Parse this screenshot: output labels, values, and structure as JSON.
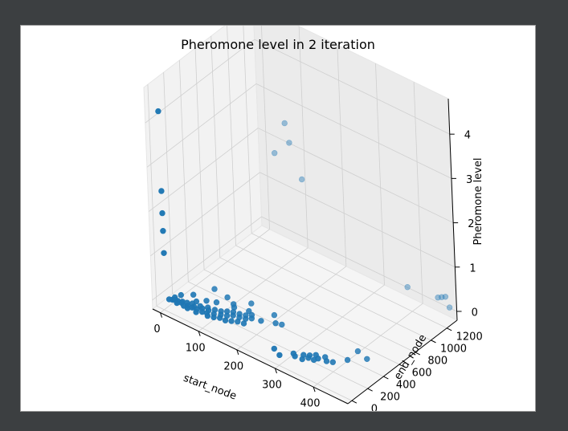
{
  "chart_data": {
    "type": "scatter",
    "title": "Pheromone level in 2 iteration",
    "xlabel": "start_node",
    "ylabel": "end_node",
    "zlabel": "Pheromone level",
    "xlim": [
      -20,
      490
    ],
    "ylim": [
      -50,
      1330
    ],
    "zlim": [
      -0.2,
      4.8
    ],
    "xticks": [
      "0",
      "100",
      "200",
      "300",
      "400"
    ],
    "yticks": [
      "0",
      "200",
      "400",
      "600",
      "800",
      "1000",
      "1200"
    ],
    "zticks": [
      "0",
      "1",
      "2",
      "3",
      "4"
    ],
    "grid": true,
    "color": "#1f77b4",
    "points": [
      [
        5,
        0,
        4.3
      ],
      [
        5,
        0,
        2.5
      ],
      [
        5,
        0,
        2.0
      ],
      [
        5,
        0,
        1.6
      ],
      [
        5,
        0,
        1.1
      ],
      [
        10,
        20,
        0.05
      ],
      [
        14,
        40,
        0.03
      ],
      [
        18,
        60,
        0.02
      ],
      [
        22,
        30,
        0.08
      ],
      [
        26,
        50,
        0.04
      ],
      [
        12,
        80,
        0.02
      ],
      [
        30,
        20,
        0.05
      ],
      [
        34,
        70,
        0.03
      ],
      [
        38,
        40,
        0.06
      ],
      [
        42,
        90,
        0.01
      ],
      [
        46,
        30,
        0.04
      ],
      [
        50,
        60,
        0.02
      ],
      [
        54,
        100,
        0.03
      ],
      [
        58,
        20,
        0.05
      ],
      [
        62,
        80,
        0.02
      ],
      [
        66,
        40,
        0.07
      ],
      [
        70,
        120,
        0.01
      ],
      [
        74,
        60,
        0.04
      ],
      [
        78,
        30,
        0.03
      ],
      [
        82,
        90,
        0.05
      ],
      [
        86,
        140,
        0.02
      ],
      [
        90,
        50,
        0.06
      ],
      [
        94,
        110,
        0.03
      ],
      [
        98,
        70,
        0.04
      ],
      [
        102,
        150,
        0.02
      ],
      [
        106,
        40,
        0.05
      ],
      [
        110,
        100,
        0.03
      ],
      [
        114,
        170,
        0.01
      ],
      [
        118,
        60,
        0.04
      ],
      [
        122,
        130,
        0.02
      ],
      [
        126,
        190,
        0.03
      ],
      [
        130,
        80,
        0.05
      ],
      [
        134,
        150,
        0.02
      ],
      [
        138,
        210,
        0.04
      ],
      [
        142,
        90,
        0.03
      ],
      [
        146,
        170,
        0.05
      ],
      [
        150,
        230,
        0.02
      ],
      [
        154,
        110,
        0.04
      ],
      [
        158,
        190,
        0.03
      ],
      [
        162,
        250,
        0.01
      ],
      [
        166,
        130,
        0.05
      ],
      [
        170,
        210,
        0.02
      ],
      [
        174,
        270,
        0.04
      ],
      [
        178,
        150,
        0.03
      ],
      [
        182,
        230,
        0.05
      ],
      [
        60,
        350,
        0.04
      ],
      [
        120,
        300,
        0.02
      ],
      [
        150,
        380,
        0.05
      ],
      [
        200,
        260,
        0.03
      ],
      [
        210,
        380,
        0.04
      ],
      [
        240,
        330,
        0.02
      ],
      [
        40,
        180,
        0.06
      ],
      [
        90,
        230,
        0.03
      ],
      [
        20,
        120,
        0.05
      ],
      [
        130,
        260,
        0.04
      ],
      [
        100,
        320,
        0.06
      ],
      [
        70,
        200,
        0.02
      ],
      [
        160,
        300,
        0.03
      ],
      [
        230,
        300,
        0.05
      ],
      [
        56,
        140,
        0.03
      ],
      [
        280,
        40,
        0.04
      ],
      [
        300,
        10,
        0.02
      ],
      [
        320,
        90,
        0.03
      ],
      [
        330,
        60,
        0.05
      ],
      [
        340,
        120,
        0.04
      ],
      [
        345,
        80,
        0.02
      ],
      [
        350,
        150,
        0.03
      ],
      [
        355,
        110,
        0.05
      ],
      [
        360,
        180,
        0.04
      ],
      [
        365,
        130,
        0.02
      ],
      [
        370,
        160,
        0.03
      ],
      [
        380,
        200,
        0.05
      ],
      [
        390,
        170,
        0.04
      ],
      [
        400,
        200,
        0.02
      ],
      [
        420,
        290,
        0.03
      ],
      [
        420,
        420,
        0.05
      ],
      [
        450,
        390,
        0.04
      ],
      [
        60,
        1290,
        2.5
      ],
      [
        70,
        1290,
        2.1
      ],
      [
        30,
        1290,
        1.7
      ],
      [
        100,
        1290,
        1.4
      ],
      [
        370,
        1290,
        0.1
      ],
      [
        450,
        1290,
        0.2
      ],
      [
        460,
        1290,
        0.25
      ],
      [
        470,
        1290,
        0.3
      ],
      [
        480,
        1290,
        0.1
      ]
    ]
  }
}
